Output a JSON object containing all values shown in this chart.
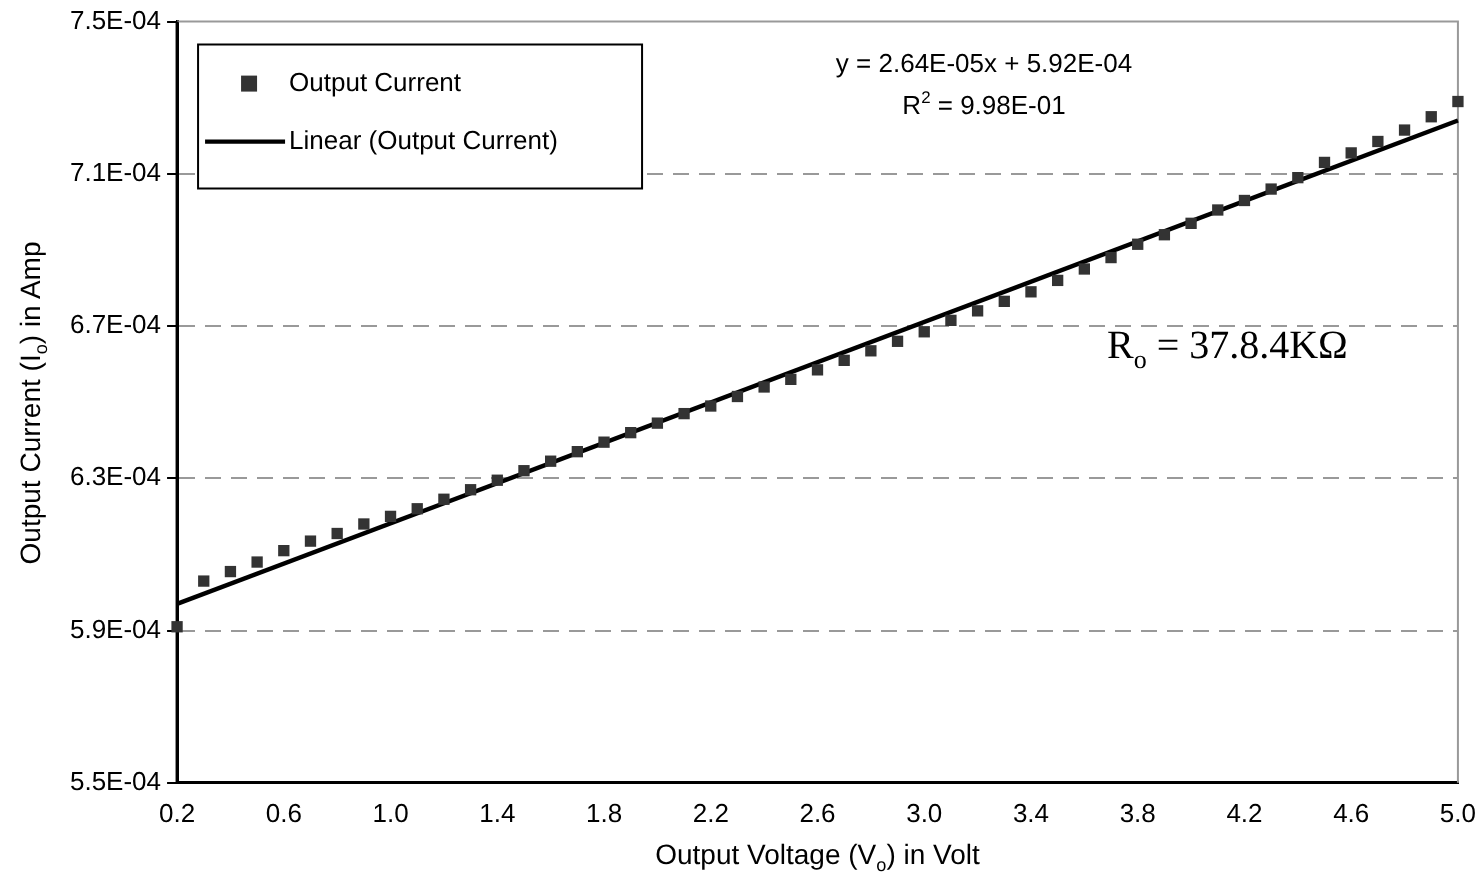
{
  "chart_data": {
    "type": "scatter",
    "xlabel": "Output Voltage (V$_{o}$) in Volt",
    "ylabel": "Output Current (I$_{o}$) in Amp",
    "x": [
      0.2,
      0.3,
      0.4,
      0.5,
      0.6,
      0.7,
      0.8,
      0.9,
      1.0,
      1.1,
      1.2,
      1.3,
      1.4,
      1.5,
      1.6,
      1.7,
      1.8,
      1.9,
      2.0,
      2.1,
      2.2,
      2.3,
      2.4,
      2.5,
      2.6,
      2.7,
      2.8,
      2.9,
      3.0,
      3.1,
      3.2,
      3.3,
      3.4,
      3.5,
      3.6,
      3.7,
      3.8,
      3.9,
      4.0,
      4.1,
      4.2,
      4.3,
      4.4,
      4.5,
      4.6,
      4.7,
      4.8,
      4.9,
      5.0
    ],
    "series": [
      {
        "name": "Output Current",
        "type": "scatter",
        "color": "#333333",
        "marker": "square",
        "values": [
          0.000591,
          0.000603,
          0.0006055,
          0.000608,
          0.000611,
          0.0006135,
          0.0006155,
          0.000618,
          0.00062,
          0.000622,
          0.0006245,
          0.000627,
          0.0006295,
          0.000632,
          0.0006345,
          0.000637,
          0.0006395,
          0.000642,
          0.0006445,
          0.000647,
          0.000649,
          0.0006515,
          0.000654,
          0.000656,
          0.0006585,
          0.000661,
          0.0006635,
          0.000666,
          0.0006685,
          0.0006715,
          0.000674,
          0.0006765,
          0.000679,
          0.000682,
          0.000685,
          0.000688,
          0.0006915,
          0.000694,
          0.000697,
          0.0007005,
          0.000703,
          0.000706,
          0.000709,
          0.000713,
          0.0007155,
          0.0007185,
          0.0007215,
          0.000725,
          0.000729
        ]
      },
      {
        "name": "Linear (Output Current)",
        "type": "line",
        "color": "#000000",
        "line_style": "solid",
        "x": [
          0.2,
          5.0
        ],
        "values": [
          0.000597,
          0.000724
        ]
      }
    ],
    "xlim": [
      0.2,
      5.0
    ],
    "xticks": [
      {
        "value": 0.2,
        "label": "0.2"
      },
      {
        "value": 0.6,
        "label": "0.6"
      },
      {
        "value": 1.0,
        "label": "1.0"
      },
      {
        "value": 1.4,
        "label": "1.4"
      },
      {
        "value": 1.8,
        "label": "1.8"
      },
      {
        "value": 2.2,
        "label": "2.2"
      },
      {
        "value": 2.6,
        "label": "2.6"
      },
      {
        "value": 3.0,
        "label": "3.0"
      },
      {
        "value": 3.4,
        "label": "3.4"
      },
      {
        "value": 3.8,
        "label": "3.8"
      },
      {
        "value": 4.2,
        "label": "4.2"
      },
      {
        "value": 4.6,
        "label": "4.6"
      },
      {
        "value": 5.0,
        "label": "5.0"
      }
    ],
    "ylim": [
      0.00055,
      0.00075
    ],
    "yticks": [
      {
        "value": 0.00055,
        "label": "5.5E-04"
      },
      {
        "value": 0.00059,
        "label": "5.9E-04"
      },
      {
        "value": 0.00063,
        "label": "6.3E-04"
      },
      {
        "value": 0.00067,
        "label": "6.7E-04"
      },
      {
        "value": 0.00071,
        "label": "7.1E-04"
      },
      {
        "value": 0.00075,
        "label": "7.5E-04"
      }
    ],
    "grid": "y",
    "legend": "top left",
    "annotations": [
      "y = 2.64E-05x + 5.92E-04",
      "R$^{2}$ = 9.98E-01",
      "R$_{o}$ = 37.8.4KΩ"
    ]
  }
}
